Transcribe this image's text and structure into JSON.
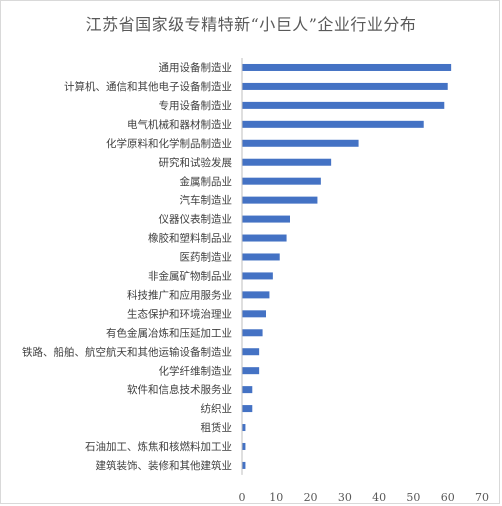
{
  "chart_data": {
    "type": "bar",
    "orientation": "horizontal",
    "title": "江苏省国家级专精特新“小巨人”企业行业分布",
    "xlabel": "",
    "ylabel": "",
    "xlim": [
      0,
      70
    ],
    "xticks": [
      0,
      10,
      20,
      30,
      40,
      50,
      60,
      70
    ],
    "grid": false,
    "legend": "none",
    "bar_color": "#4472c4",
    "categories": [
      "通用设备制造业",
      "计算机、通信和其他电子设备制造业",
      "专用设备制造业",
      "电气机械和器材制造业",
      "化学原料和化学制品制造业",
      "研究和试验发展",
      "金属制品业",
      "汽车制造业",
      "仪器仪表制造业",
      "橡胶和塑料制品业",
      "医药制造业",
      "非金属矿物制品业",
      "科技推广和应用服务业",
      "生态保护和环境治理业",
      "有色金属冶炼和压延加工业",
      "铁路、船舶、航空航天和其他运输设备制造业",
      "化学纤维制造业",
      "软件和信息技术服务业",
      "纺织业",
      "租赁业",
      "石油加工、炼焦和核燃料加工业",
      "建筑装饰、装修和其他建筑业"
    ],
    "values": [
      61,
      60,
      59,
      53,
      34,
      26,
      23,
      22,
      14,
      13,
      11,
      9,
      8,
      7,
      6,
      5,
      5,
      3,
      3,
      1,
      1,
      1
    ]
  }
}
